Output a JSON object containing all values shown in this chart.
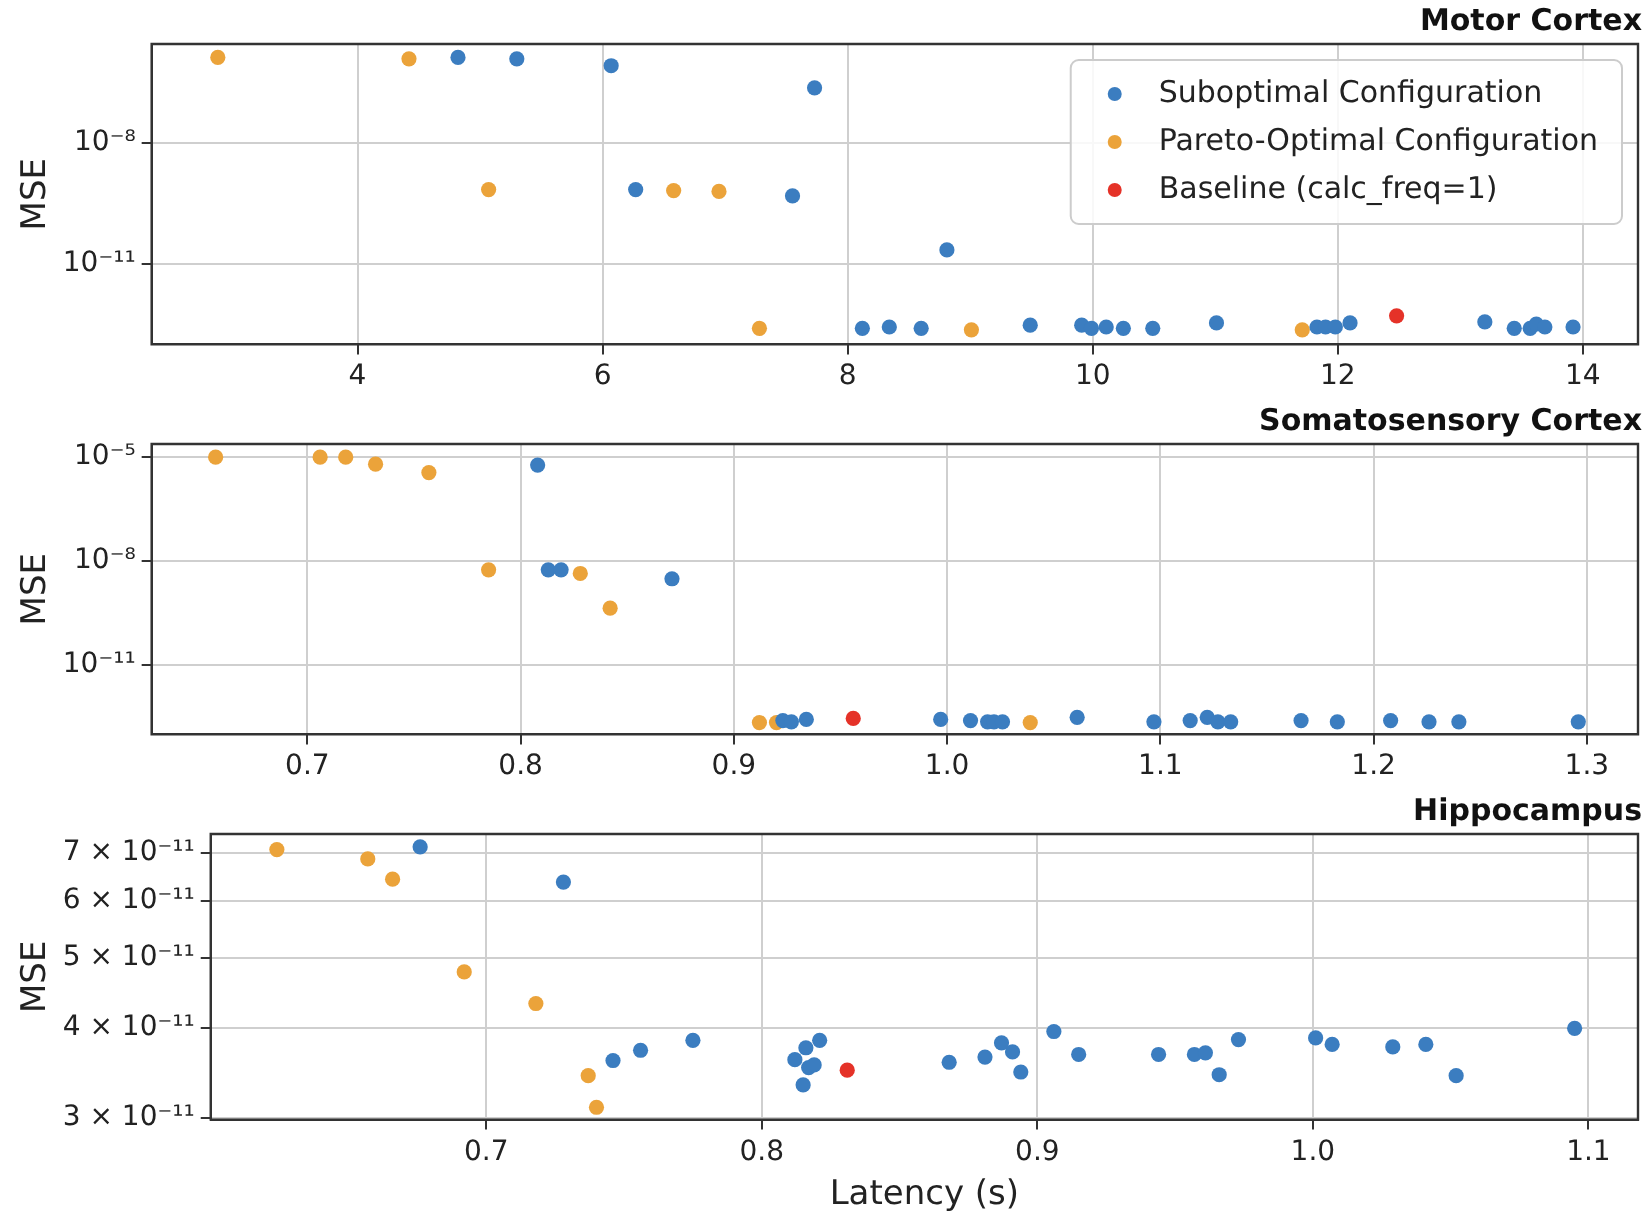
{
  "chart_data": [
    {
      "type": "scatter",
      "title": "Motor Cortex",
      "ylabel": "MSE",
      "log": "y",
      "grid": true,
      "marker": "circle",
      "legend": "top right",
      "xlim": [
        2.32,
        14.45
      ],
      "xticks": [
        4,
        6,
        8,
        10,
        12,
        14
      ],
      "ylim": [
        1e-13,
        2.8e-06
      ],
      "yticks": [
        {
          "value": 1e-08,
          "label": "10⁻⁸"
        },
        {
          "value": 1e-11,
          "label": "10⁻¹¹"
        }
      ],
      "series": [
        {
          "name": "Suboptimal Configuration",
          "color": "#3b7dc0",
          "x": [
            4.82,
            5.3,
            6.07,
            7.73,
            6.27,
            7.55,
            8.81,
            8.12,
            8.34,
            8.6,
            9.49,
            9.91,
            9.99,
            10.11,
            10.25,
            10.49,
            11.01,
            11.83,
            11.9,
            11.98,
            12.1,
            13.2,
            13.44,
            13.57,
            13.62,
            13.69,
            13.92
          ],
          "values": [
            1.3e-06,
            1.2e-06,
            8.1e-07,
            2.3e-07,
            6.9e-10,
            4.8e-10,
            2.2e-11,
            2.5e-13,
            2.7e-13,
            2.5e-13,
            3e-13,
            3e-13,
            2.5e-13,
            2.7e-13,
            2.5e-13,
            2.5e-13,
            3.4e-13,
            2.7e-13,
            2.7e-13,
            2.7e-13,
            3.4e-13,
            3.6e-13,
            2.5e-13,
            2.5e-13,
            3.2e-13,
            2.7e-13,
            2.7e-13
          ]
        },
        {
          "name": "Pareto-Optimal Configuration",
          "color": "#eba33a",
          "x": [
            2.86,
            4.42,
            5.07,
            6.58,
            6.95,
            7.28,
            9.01,
            11.71
          ],
          "values": [
            1.3e-06,
            1.2e-06,
            6.9e-10,
            6.5e-10,
            6.2e-10,
            2.5e-13,
            2.3e-13,
            2.3e-13
          ]
        },
        {
          "name": "Baseline (calc_freq=1)",
          "color": "#e53228",
          "x": [
            12.48
          ],
          "values": [
            5.1e-13
          ]
        }
      ]
    },
    {
      "type": "scatter",
      "title": "Somatosensory Cortex",
      "ylabel": "MSE",
      "log": "y",
      "grid": true,
      "marker": "circle",
      "xlim": [
        0.627,
        1.324
      ],
      "xticks": [
        {
          "value": 0.7,
          "label": "0.7"
        },
        {
          "value": 0.8,
          "label": "0.8"
        },
        {
          "value": 0.9,
          "label": "0.9"
        },
        {
          "value": 1.0,
          "label": "1.0"
        },
        {
          "value": 1.1,
          "label": "1.1"
        },
        {
          "value": 1.2,
          "label": "1.2"
        },
        {
          "value": 1.3,
          "label": "1.3"
        }
      ],
      "ylim": [
        1e-13,
        2.4e-05
      ],
      "yticks": [
        {
          "value": 1e-05,
          "label": "10⁻⁵"
        },
        {
          "value": 1e-08,
          "label": "10⁻⁸"
        },
        {
          "value": 1e-11,
          "label": "10⁻¹¹"
        }
      ],
      "series": [
        {
          "color": "#3b7dc0",
          "x": [
            0.808,
            0.813,
            0.819,
            0.871,
            0.923,
            0.927,
            0.934,
            0.997,
            1.011,
            1.019,
            1.022,
            1.026,
            1.061,
            1.097,
            1.114,
            1.122,
            1.127,
            1.133,
            1.166,
            1.183,
            1.208,
            1.226,
            1.24,
            1.296
          ],
          "values": [
            5.9e-06,
            5.6e-09,
            5.6e-09,
            3.1e-09,
            2.5e-13,
            2.3e-13,
            2.7e-13,
            2.7e-13,
            2.5e-13,
            2.3e-13,
            2.3e-13,
            2.3e-13,
            3.1e-13,
            2.3e-13,
            2.5e-13,
            3.1e-13,
            2.3e-13,
            2.3e-13,
            2.5e-13,
            2.3e-13,
            2.5e-13,
            2.3e-13,
            2.3e-13,
            2.3e-13
          ]
        },
        {
          "color": "#eba33a",
          "x": [
            0.657,
            0.706,
            0.718,
            0.732,
            0.757,
            0.785,
            0.828,
            0.842,
            0.912,
            0.92,
            1.039
          ],
          "values": [
            1e-05,
            1e-05,
            1e-05,
            6.3e-06,
            3.6e-06,
            5.6e-09,
            4.4e-09,
            4.4e-10,
            2.2e-13,
            2.2e-13,
            2.2e-13
          ]
        },
        {
          "color": "#e53228",
          "x": [
            0.956
          ],
          "values": [
            2.9e-13
          ]
        }
      ]
    },
    {
      "type": "scatter",
      "title": "Hippocampus",
      "xlabel": "Latency (s)",
      "ylabel": "MSE",
      "log": "y",
      "grid": true,
      "marker": "circle",
      "xlim": [
        0.6,
        1.118
      ],
      "xticks": [
        {
          "value": 0.7,
          "label": "0.7"
        },
        {
          "value": 0.8,
          "label": "0.8"
        },
        {
          "value": 0.9,
          "label": "0.9"
        },
        {
          "value": 1.0,
          "label": "1.0"
        },
        {
          "value": 1.1,
          "label": "1.1"
        }
      ],
      "ylim": [
        2.98e-11,
        7.43e-11
      ],
      "yticks": [
        {
          "value": 3e-11,
          "label": "3 × 10⁻¹¹"
        },
        {
          "value": 4e-11,
          "label": "4 × 10⁻¹¹"
        },
        {
          "value": 5e-11,
          "label": "5 × 10⁻¹¹"
        },
        {
          "value": 6e-11,
          "label": "6 × 10⁻¹¹"
        },
        {
          "value": 7e-11,
          "label": "7 × 10⁻¹¹"
        }
      ],
      "series": [
        {
          "color": "#3b7dc0",
          "x": [
            0.676,
            0.728,
            0.746,
            0.756,
            0.775,
            0.812,
            0.816,
            0.815,
            0.817,
            0.819,
            0.821,
            0.868,
            0.881,
            0.887,
            0.891,
            0.894,
            0.906,
            0.915,
            0.944,
            0.957,
            0.961,
            0.966,
            0.973,
            1.001,
            1.007,
            1.029,
            1.041,
            1.052,
            1.095
          ],
          "values": [
            7.13e-11,
            6.37e-11,
            3.6e-11,
            3.72e-11,
            3.84e-11,
            3.61e-11,
            3.75e-11,
            3.33e-11,
            3.52e-11,
            3.55e-11,
            3.84e-11,
            3.58e-11,
            3.64e-11,
            3.81e-11,
            3.7e-11,
            3.47e-11,
            3.95e-11,
            3.67e-11,
            3.67e-11,
            3.67e-11,
            3.69e-11,
            3.44e-11,
            3.85e-11,
            3.87e-11,
            3.79e-11,
            3.76e-11,
            3.79e-11,
            3.43e-11,
            3.99e-11
          ]
        },
        {
          "color": "#eba33a",
          "x": [
            0.624,
            0.657,
            0.666,
            0.692,
            0.718,
            0.737,
            0.74
          ],
          "values": [
            7.07e-11,
            6.86e-11,
            6.43e-11,
            4.78e-11,
            4.32e-11,
            3.43e-11,
            3.1e-11
          ]
        },
        {
          "color": "#e53228",
          "x": [
            0.831
          ],
          "values": [
            3.49e-11
          ]
        }
      ]
    }
  ]
}
